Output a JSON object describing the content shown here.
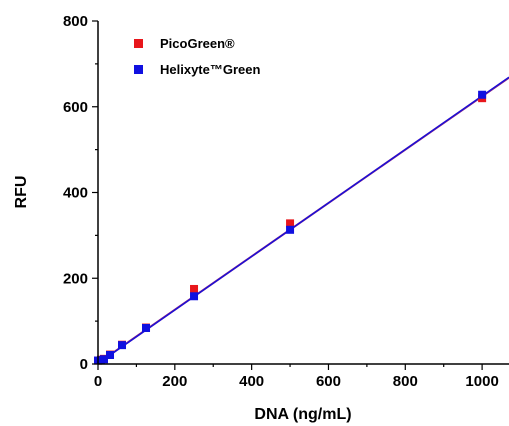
{
  "chart_data": {
    "type": "scatter",
    "title": "",
    "xlabel": "DNA (ng/mL)",
    "ylabel": "RFU",
    "xlim": [
      0,
      1070
    ],
    "ylim": [
      0,
      800
    ],
    "x_ticks": [
      "0",
      "200",
      "400",
      "600",
      "800",
      "1000"
    ],
    "y_ticks": [
      "0",
      "200",
      "400",
      "600",
      "800"
    ],
    "grid": false,
    "legend_position": "top-left",
    "series": [
      {
        "name": "PicoGreen®",
        "color": "#e8161b",
        "x": [
          0,
          7.8,
          15.6,
          31.25,
          62.5,
          125,
          250,
          500,
          1000
        ],
        "y": [
          8,
          10,
          12,
          22,
          45,
          85,
          175,
          328,
          620
        ]
      },
      {
        "name": "Helixyte™Green",
        "color": "#1010e0",
        "x": [
          0,
          7.8,
          15.6,
          31.25,
          62.5,
          125,
          250,
          500,
          1000
        ],
        "y": [
          8,
          9,
          11,
          21,
          44,
          84,
          158,
          313,
          628
        ]
      }
    ],
    "fit_lines": [
      {
        "color": "#7a1a8a",
        "x": [
          0,
          1070
        ],
        "y": [
          2,
          668
        ]
      },
      {
        "color": "#1010e0",
        "x": [
          0,
          1070
        ],
        "y": [
          1,
          669
        ]
      }
    ]
  }
}
